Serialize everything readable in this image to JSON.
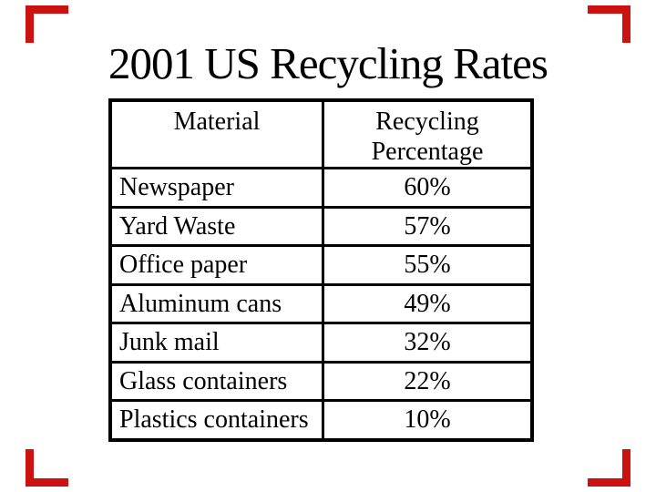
{
  "slide": {
    "title": "2001 US Recycling Rates"
  },
  "table": {
    "col_headers": {
      "material": "Material",
      "percentage": "Recycling\nPercentage"
    },
    "rows": [
      {
        "material": "Newspaper",
        "percentage": "60%"
      },
      {
        "material": "Yard Waste",
        "percentage": "57%"
      },
      {
        "material": "Office paper",
        "percentage": "55%"
      },
      {
        "material": "Aluminum cans",
        "percentage": "49%"
      },
      {
        "material": "Junk mail",
        "percentage": "32%"
      },
      {
        "material": "Glass containers",
        "percentage": "22%"
      },
      {
        "material": "Plastics containers",
        "percentage": "10%"
      }
    ]
  },
  "chart_data": {
    "type": "table",
    "title": "2001 US Recycling Rates",
    "columns": [
      "Material",
      "Recycling Percentage"
    ],
    "categories": [
      "Newspaper",
      "Yard Waste",
      "Office paper",
      "Aluminum cans",
      "Junk mail",
      "Glass containers",
      "Plastics containers"
    ],
    "values": [
      60,
      57,
      55,
      49,
      32,
      22,
      10
    ],
    "unit": "%"
  },
  "colors": {
    "background": "#ffffff",
    "text": "#000000",
    "table_border": "#000000",
    "corner_marker": "#cc1111"
  }
}
